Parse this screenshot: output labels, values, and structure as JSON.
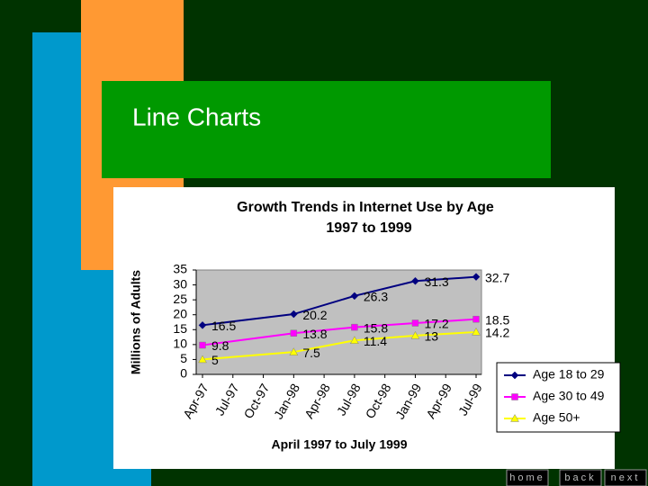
{
  "slide": {
    "title": "Line Charts",
    "nav": [
      "home",
      "back",
      "next"
    ]
  },
  "chart_data": {
    "type": "line",
    "title": "Growth Trends in Internet Use by Age",
    "subtitle": "1997 to 1999",
    "x_label": "April 1997 to July 1999",
    "y_label": "Millions of Adults",
    "x": [
      "Apr-97",
      "Jan-98",
      "Jul-98",
      "Jan-99",
      "Jul-99"
    ],
    "xticks": [
      "Apr-97",
      "Jul-97",
      "Oct-97",
      "Jan-98",
      "Apr-98",
      "Jul-98",
      "Oct-98",
      "Jan-99",
      "Apr-99",
      "Jul-99"
    ],
    "ylim": [
      0,
      35
    ],
    "yticks": [
      0,
      5,
      10,
      15,
      20,
      25,
      30,
      35
    ],
    "plot_background": "#c0c0c0",
    "legend": "right",
    "series": [
      {
        "name": "Age 18 to 29",
        "color": "#000080",
        "marker": "diamond",
        "values": [
          16.5,
          20.2,
          26.3,
          31.3,
          32.7
        ]
      },
      {
        "name": "Age 30 to 49",
        "color": "#ff00ff",
        "marker": "square",
        "values": [
          9.8,
          13.8,
          15.8,
          17.2,
          18.5
        ]
      },
      {
        "name": "Age 50+",
        "color": "#ffff00",
        "marker": "triangle",
        "values": [
          5,
          7.5,
          11.4,
          13,
          14.2
        ]
      }
    ]
  }
}
